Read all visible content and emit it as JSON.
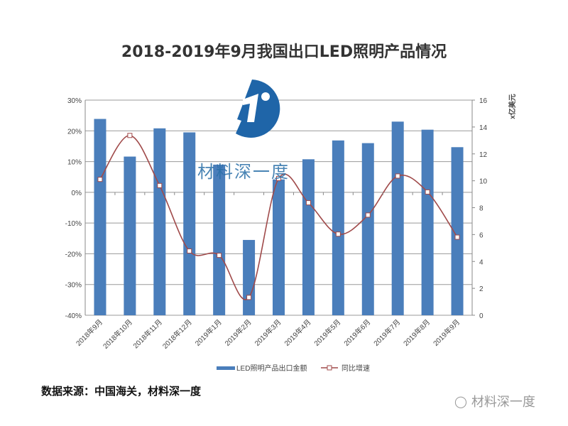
{
  "chart_data": {
    "type": "bar+line",
    "title": "2018-2019年9月我国出口LED照明产品情况",
    "categories": [
      "2018年9月",
      "2018年10月",
      "2018年11月",
      "2018年12月",
      "2019年1月",
      "2019年2月",
      "2019年3月",
      "2019年4月",
      "2019年5月",
      "2019年6月",
      "2019年7月",
      "2019年8月",
      "2019年9月"
    ],
    "series": [
      {
        "name": "LED照明产品出口金额",
        "type": "bar",
        "axis": "right",
        "color": "#4a7ebb",
        "values": [
          14.6,
          11.8,
          13.9,
          13.6,
          11.2,
          5.6,
          10.1,
          11.6,
          13.0,
          12.8,
          14.4,
          13.8,
          12.5
        ]
      },
      {
        "name": "同比增速",
        "type": "line",
        "axis": "left",
        "color": "#a04a4a",
        "values": [
          4.2,
          18.5,
          2.2,
          -19.1,
          -20.5,
          -34.2,
          4.5,
          -3.4,
          -13.6,
          -7.4,
          5.3,
          0.1,
          -14.6
        ]
      }
    ],
    "left_axis": {
      "ylim": [
        -40,
        30
      ],
      "ticks": [
        "30%",
        "20%",
        "10%",
        "0%",
        "-10%",
        "-20%",
        "-30%",
        "-40%"
      ],
      "unit": "%"
    },
    "right_axis": {
      "ylim": [
        0,
        16
      ],
      "ticks": [
        "16",
        "14",
        "12",
        "10",
        "8",
        "6",
        "4",
        "2",
        "0"
      ],
      "label": "x亿美元"
    },
    "grid": true,
    "legend": "bottom"
  },
  "source": "数据来源：中国海关，材料深一度",
  "watermark": "材料深一度",
  "colors": {
    "bar": "#4a7ebb",
    "line": "#a04a4a",
    "logo": "#1f65a8"
  }
}
